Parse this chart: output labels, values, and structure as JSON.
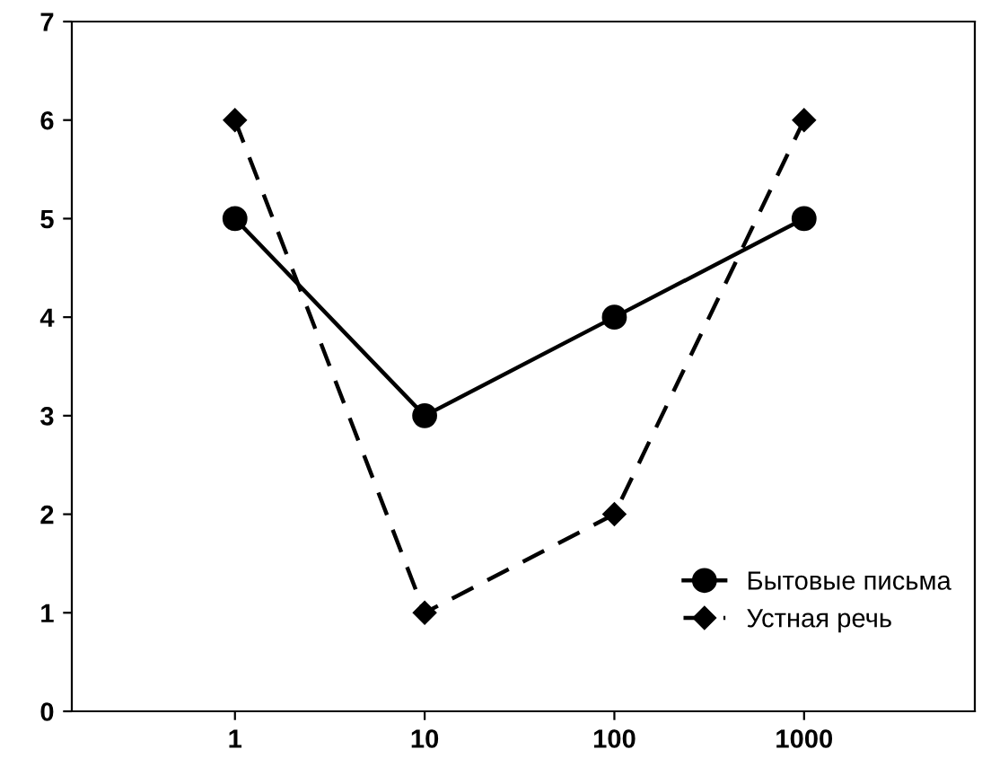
{
  "chart_data": {
    "type": "line",
    "categories": [
      "1",
      "10",
      "100",
      "1000"
    ],
    "series": [
      {
        "name": "Бытовые письма",
        "color": "#000000",
        "values": [
          5,
          3,
          4,
          5
        ],
        "marker": "circle",
        "line_style": "solid"
      },
      {
        "name": "Устная речь",
        "color": "#000000",
        "values": [
          6,
          1,
          2,
          6
        ],
        "marker": "diamond",
        "line_style": "dashed"
      }
    ],
    "ylim": [
      0,
      7
    ],
    "yticks": [
      0,
      1,
      2,
      3,
      4,
      5,
      6,
      7
    ],
    "grid": false,
    "legend": "bottom right"
  }
}
